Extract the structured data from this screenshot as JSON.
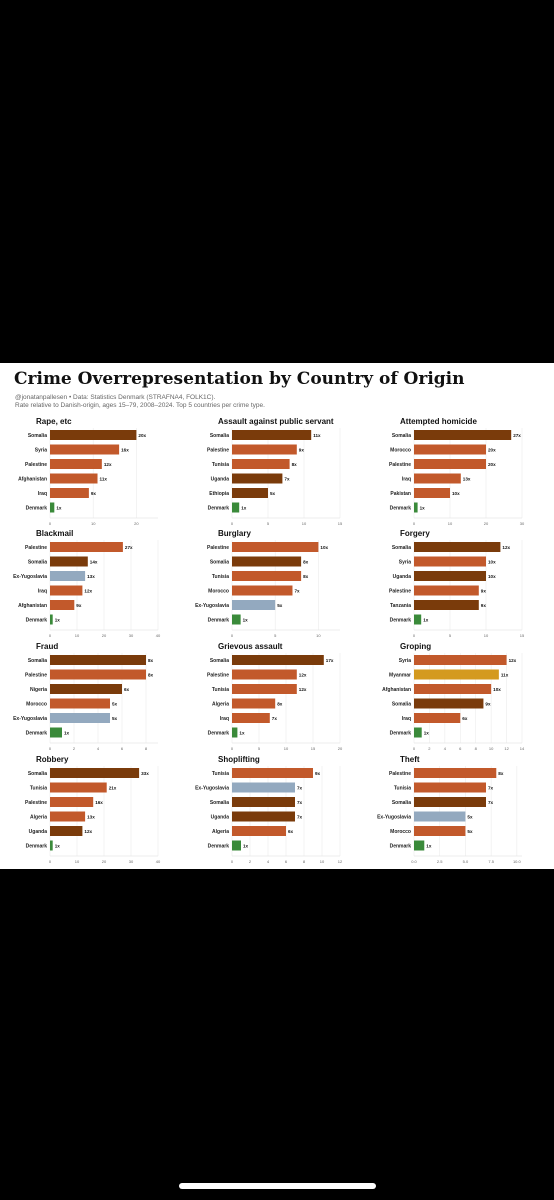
{
  "header": {
    "title": "Crime Overrepresentation by Country of Origin",
    "source": "@jonatanpallesen • Data: Statistics Denmark (STRAFNA4, FOLK1C).",
    "note": "Rate relative to Danish-origin, ages 15–79, 2008–2024. Top 5 countries per crime type."
  },
  "colors": {
    "dark_brown": "#7a3b0b",
    "orange": "#c2592b",
    "blue_gray": "#93a9bf",
    "gold": "#d49a1f",
    "green": "#3a8a3a"
  },
  "chart_data": [
    {
      "type": "bar",
      "orientation": "horizontal",
      "title": "Rape, etc",
      "categories": [
        "Somalia",
        "Syria",
        "Palestine",
        "Afghanistan",
        "Iraq",
        "Denmark"
      ],
      "values": [
        20,
        16,
        12,
        11,
        9,
        1
      ],
      "labels": [
        "20x",
        "16x",
        "12x",
        "11x",
        "9x",
        "1x"
      ],
      "colors": [
        "dark_brown",
        "orange",
        "orange",
        "orange",
        "orange",
        "green"
      ],
      "xticks": [
        "0",
        "10",
        "20"
      ],
      "xlim": [
        0,
        25
      ]
    },
    {
      "type": "bar",
      "orientation": "horizontal",
      "title": "Assault against public servant",
      "categories": [
        "Somalia",
        "Palestine",
        "Tunisia",
        "Uganda",
        "Ethiopia",
        "Denmark"
      ],
      "values": [
        11,
        9,
        8,
        7,
        5,
        1
      ],
      "labels": [
        "11x",
        "9x",
        "8x",
        "7x",
        "5x",
        "1x"
      ],
      "colors": [
        "dark_brown",
        "orange",
        "orange",
        "dark_brown",
        "dark_brown",
        "green"
      ],
      "xticks": [
        "0",
        "5",
        "10",
        "15"
      ],
      "xlim": [
        0,
        15
      ]
    },
    {
      "type": "bar",
      "orientation": "horizontal",
      "title": "Attempted homicide",
      "categories": [
        "Somalia",
        "Morocco",
        "Palestine",
        "Iraq",
        "Pakistan",
        "Denmark"
      ],
      "values": [
        27,
        20,
        20,
        13,
        10,
        1
      ],
      "labels": [
        "27x",
        "20x",
        "20x",
        "13x",
        "10x",
        "1x"
      ],
      "colors": [
        "dark_brown",
        "orange",
        "orange",
        "orange",
        "orange",
        "green"
      ],
      "xticks": [
        "0",
        "10",
        "20",
        "30"
      ],
      "xlim": [
        0,
        30
      ]
    },
    {
      "type": "bar",
      "orientation": "horizontal",
      "title": "Blackmail",
      "categories": [
        "Palestine",
        "Somalia",
        "Ex-Yugoslavia",
        "Iraq",
        "Afghanistan",
        "Denmark"
      ],
      "values": [
        27,
        14,
        13,
        12,
        9,
        1
      ],
      "labels": [
        "27x",
        "14x",
        "13x",
        "12x",
        "9x",
        "1x"
      ],
      "colors": [
        "orange",
        "dark_brown",
        "blue_gray",
        "orange",
        "orange",
        "green"
      ],
      "xticks": [
        "0",
        "10",
        "20",
        "30",
        "40"
      ],
      "xlim": [
        0,
        40
      ]
    },
    {
      "type": "bar",
      "orientation": "horizontal",
      "title": "Burglary",
      "categories": [
        "Palestine",
        "Somalia",
        "Tunisia",
        "Morocco",
        "Ex-Yugoslavia",
        "Denmark"
      ],
      "values": [
        10,
        8,
        8,
        7,
        5,
        1
      ],
      "labels": [
        "10x",
        "8x",
        "8x",
        "7x",
        "5x",
        "1x"
      ],
      "colors": [
        "orange",
        "dark_brown",
        "orange",
        "orange",
        "blue_gray",
        "green"
      ],
      "xticks": [
        "0",
        "5",
        "10"
      ],
      "xlim": [
        0,
        12.5
      ]
    },
    {
      "type": "bar",
      "orientation": "horizontal",
      "title": "Forgery",
      "categories": [
        "Somalia",
        "Syria",
        "Uganda",
        "Palestine",
        "Tanzania",
        "Denmark"
      ],
      "values": [
        12,
        10,
        10,
        9,
        9,
        1
      ],
      "labels": [
        "12x",
        "10x",
        "10x",
        "9x",
        "9x",
        "1x"
      ],
      "colors": [
        "dark_brown",
        "orange",
        "dark_brown",
        "orange",
        "dark_brown",
        "green"
      ],
      "xticks": [
        "0",
        "5",
        "10",
        "15"
      ],
      "xlim": [
        0,
        15
      ]
    },
    {
      "type": "bar",
      "orientation": "horizontal",
      "title": "Fraud",
      "categories": [
        "Somalia",
        "Palestine",
        "Nigeria",
        "Morocco",
        "Ex-Yugoslavia",
        "Denmark"
      ],
      "values": [
        8,
        8,
        6,
        5,
        5,
        1
      ],
      "labels": [
        "8x",
        "8x",
        "6x",
        "5x",
        "5x",
        "1x"
      ],
      "colors": [
        "dark_brown",
        "orange",
        "dark_brown",
        "orange",
        "blue_gray",
        "green"
      ],
      "xticks": [
        "0",
        "2",
        "4",
        "6",
        "8"
      ],
      "xlim": [
        0,
        9
      ]
    },
    {
      "type": "bar",
      "orientation": "horizontal",
      "title": "Grievous assault",
      "categories": [
        "Somalia",
        "Palestine",
        "Tunisia",
        "Algeria",
        "Iraq",
        "Denmark"
      ],
      "values": [
        17,
        12,
        12,
        8,
        7,
        1
      ],
      "labels": [
        "17x",
        "12x",
        "12x",
        "8x",
        "7x",
        "1x"
      ],
      "colors": [
        "dark_brown",
        "orange",
        "orange",
        "orange",
        "orange",
        "green"
      ],
      "xticks": [
        "0",
        "5",
        "10",
        "15",
        "20"
      ],
      "xlim": [
        0,
        20
      ]
    },
    {
      "type": "bar",
      "orientation": "horizontal",
      "title": "Groping",
      "categories": [
        "Syria",
        "Myanmar",
        "Afghanistan",
        "Somalia",
        "Iraq",
        "Denmark"
      ],
      "values": [
        12,
        11,
        10,
        9,
        6,
        1
      ],
      "labels": [
        "12x",
        "11x",
        "10x",
        "9x",
        "6x",
        "1x"
      ],
      "colors": [
        "orange",
        "gold",
        "orange",
        "dark_brown",
        "orange",
        "green"
      ],
      "xticks": [
        "0",
        "2",
        "4",
        "6",
        "8",
        "10",
        "12",
        "14"
      ],
      "xlim": [
        0,
        14
      ]
    },
    {
      "type": "bar",
      "orientation": "horizontal",
      "title": "Robbery",
      "categories": [
        "Somalia",
        "Tunisia",
        "Palestine",
        "Algeria",
        "Uganda",
        "Denmark"
      ],
      "values": [
        33,
        21,
        16,
        13,
        12,
        1
      ],
      "labels": [
        "33x",
        "21x",
        "16x",
        "13x",
        "12x",
        "1x"
      ],
      "colors": [
        "dark_brown",
        "orange",
        "orange",
        "orange",
        "dark_brown",
        "green"
      ],
      "xticks": [
        "0",
        "10",
        "20",
        "30",
        "40"
      ],
      "xlim": [
        0,
        40
      ]
    },
    {
      "type": "bar",
      "orientation": "horizontal",
      "title": "Shoplifting",
      "categories": [
        "Tunisia",
        "Ex-Yugoslavia",
        "Somalia",
        "Uganda",
        "Algeria",
        "Denmark"
      ],
      "values": [
        9,
        7,
        7,
        7,
        6,
        1
      ],
      "labels": [
        "9x",
        "7x",
        "7x",
        "7x",
        "6x",
        "1x"
      ],
      "colors": [
        "orange",
        "blue_gray",
        "dark_brown",
        "dark_brown",
        "orange",
        "green"
      ],
      "xticks": [
        "0",
        "2",
        "4",
        "6",
        "8",
        "10",
        "12"
      ],
      "xlim": [
        0,
        12
      ]
    },
    {
      "type": "bar",
      "orientation": "horizontal",
      "title": "Theft",
      "categories": [
        "Palestine",
        "Tunisia",
        "Somalia",
        "Ex-Yugoslavia",
        "Morocco",
        "Denmark"
      ],
      "values": [
        8,
        7,
        7,
        5,
        5,
        1
      ],
      "labels": [
        "8x",
        "7x",
        "7x",
        "5x",
        "5x",
        "1x"
      ],
      "colors": [
        "orange",
        "orange",
        "dark_brown",
        "blue_gray",
        "orange",
        "green"
      ],
      "xticks": [
        "0.0",
        "2.5",
        "5.0",
        "7.5",
        "10.0"
      ],
      "xlim": [
        0,
        10.5
      ]
    }
  ]
}
